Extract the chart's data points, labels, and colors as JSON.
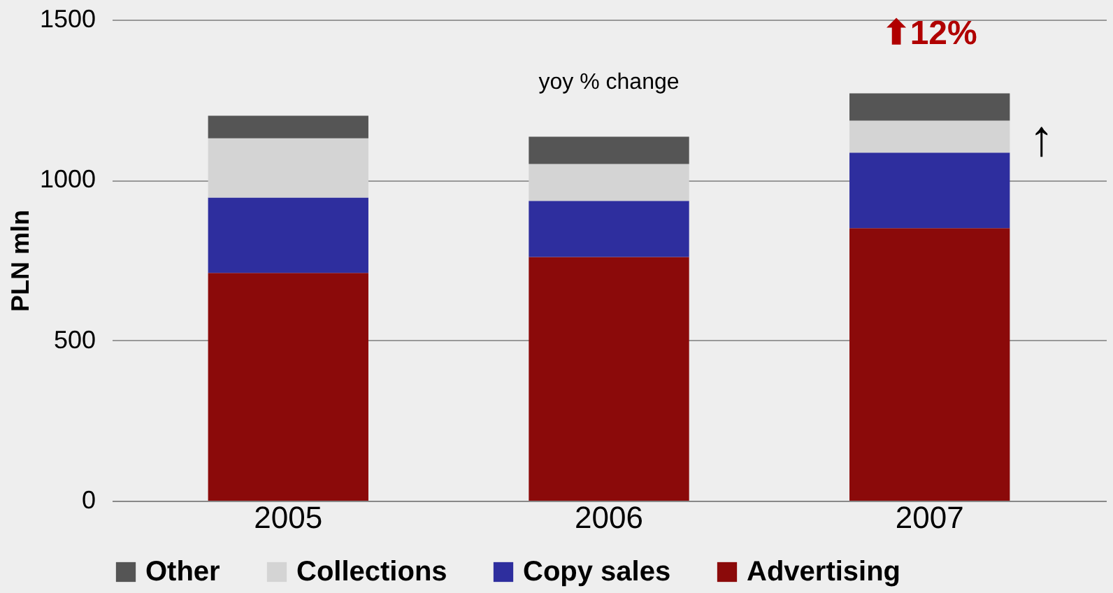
{
  "chart_data": {
    "type": "bar",
    "stacked": true,
    "ylabel": "PLN mln",
    "categories": [
      "2005",
      "2006",
      "2007"
    ],
    "series": [
      {
        "name": "Advertising",
        "color": "#8b0a0a",
        "values": [
          710,
          760,
          850
        ]
      },
      {
        "name": "Copy sales",
        "color": "#2e2e9e",
        "values": [
          235,
          175,
          235
        ]
      },
      {
        "name": "Collections",
        "color": "#d4d4d4",
        "values": [
          185,
          115,
          100
        ]
      },
      {
        "name": "Other",
        "color": "#555555",
        "values": [
          70,
          85,
          85
        ]
      }
    ],
    "ylim": [
      0,
      1500
    ],
    "yticks": [
      0,
      500,
      1000,
      1500
    ],
    "grid": "y",
    "legend": "bottom",
    "annotations": [
      "yoy % change",
      "⬆12%",
      "↑"
    ]
  }
}
